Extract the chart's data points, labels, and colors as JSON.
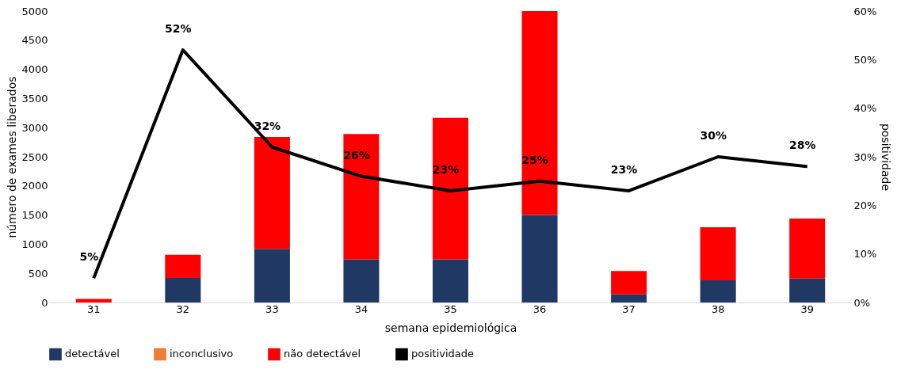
{
  "chart_data": {
    "type": "bar",
    "stacked": true,
    "xlabel": "semana epidemiológica",
    "ylabel": "número de exames liberados",
    "y2label": "positividade",
    "categories": [
      "31",
      "32",
      "33",
      "34",
      "35",
      "36",
      "37",
      "38",
      "39"
    ],
    "series": [
      {
        "name": "detectável",
        "color": "#203864",
        "values": [
          0,
          420,
          920,
          740,
          740,
          1500,
          140,
          380,
          410
        ]
      },
      {
        "name": "inconclusivo",
        "color": "#ed7d31",
        "values": [
          0,
          0,
          0,
          0,
          0,
          0,
          0,
          0,
          0
        ]
      },
      {
        "name": "não detectável",
        "color": "#ff0000",
        "values": [
          60,
          400,
          1920,
          2150,
          2430,
          3500,
          400,
          910,
          1030
        ]
      },
      {
        "name": "positividade",
        "color": "#000000",
        "type": "line",
        "axis": "y2",
        "values": [
          5,
          52,
          32,
          26,
          23,
          25,
          23,
          30,
          28
        ],
        "value_labels": [
          "5%",
          "52%",
          "32%",
          "26%",
          "23%",
          "25%",
          "23%",
          "30%",
          "28%"
        ]
      }
    ],
    "ylim": [
      0,
      5000
    ],
    "yticks": [
      0,
      500,
      1000,
      1500,
      2000,
      2500,
      3000,
      3500,
      4000,
      4500,
      5000
    ],
    "y2lim": [
      0,
      60
    ],
    "y2ticks": [
      {
        "value": 0,
        "label": "0%"
      },
      {
        "value": 10,
        "label": "10%"
      },
      {
        "value": 20,
        "label": "20%"
      },
      {
        "value": 30,
        "label": "30%"
      },
      {
        "value": 40,
        "label": "40%"
      },
      {
        "value": 50,
        "label": "50%"
      },
      {
        "value": 60,
        "label": "60%"
      }
    ],
    "grid": false,
    "legend": "bottom",
    "marker": "none",
    "line_style": "solid"
  }
}
